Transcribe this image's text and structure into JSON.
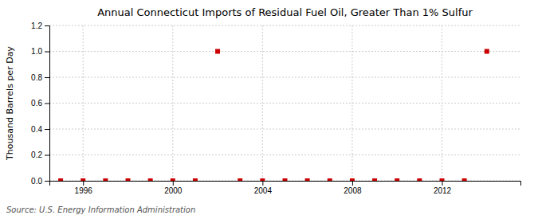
{
  "chart_data": {
    "type": "scatter",
    "title": "Annual Connecticut Imports of Residual Fuel Oil, Greater Than 1% Sulfur",
    "ylabel": "Thousand Barrels per Day",
    "annotations": [
      "Source: U.S. Energy Information Administration"
    ],
    "x": [
      1995,
      1996,
      1997,
      1998,
      1999,
      2000,
      2001,
      2002,
      2003,
      2004,
      2005,
      2006,
      2007,
      2008,
      2009,
      2010,
      2011,
      2012,
      2013,
      2014
    ],
    "values": [
      0,
      0,
      0,
      0,
      0,
      0,
      0,
      1.0,
      0,
      0,
      0,
      0,
      0,
      0,
      0,
      0,
      0,
      0,
      0,
      1.0
    ],
    "color": "#cc0000",
    "marker": "square",
    "xlim": [
      1994.5,
      2015.5
    ],
    "xticks": [
      1996,
      2000,
      2004,
      2008,
      2012
    ],
    "ylim": [
      0.0,
      1.2
    ],
    "yticks": [
      {
        "value": 0.0,
        "label": "0.0"
      },
      0.2,
      0.4,
      0.6,
      0.8,
      {
        "value": 1.0,
        "label": "1.0"
      },
      1.2
    ],
    "grid": true
  }
}
